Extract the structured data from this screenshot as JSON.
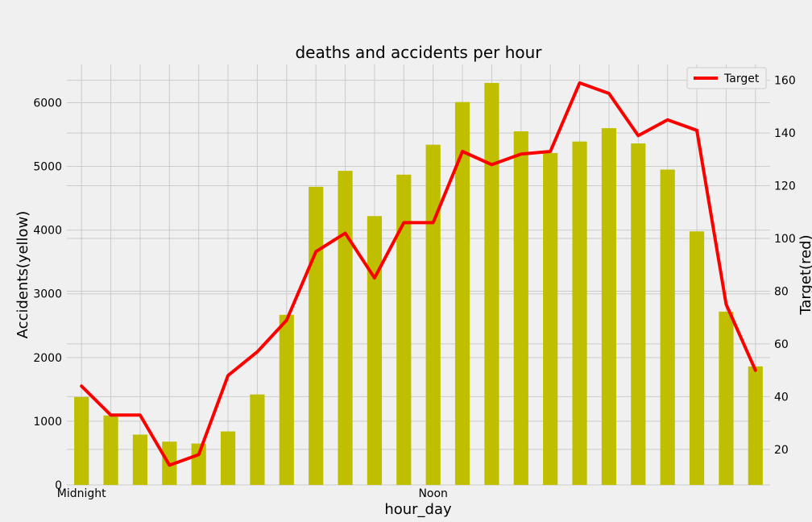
{
  "chart_data": {
    "type": "bar",
    "title": "deaths and accidents per hour",
    "xlabel": "hour_day",
    "ylabel": "Accidents(yellow)",
    "y2label": "Target(red)",
    "x": [
      0,
      1,
      2,
      3,
      4,
      5,
      6,
      7,
      8,
      9,
      10,
      11,
      12,
      13,
      14,
      15,
      16,
      17,
      18,
      19,
      20,
      21,
      22,
      23
    ],
    "x_tick_labels": [
      {
        "x": 0,
        "label": "Midnight"
      },
      {
        "x": 12,
        "label": "Noon"
      }
    ],
    "ylim": [
      0,
      6600
    ],
    "yticks": [
      0,
      1000,
      2000,
      3000,
      4000,
      5000,
      6000
    ],
    "y2lim": [
      6.5,
      166
    ],
    "y2ticks": [
      20,
      40,
      60,
      80,
      100,
      120,
      140,
      160
    ],
    "grid": true,
    "legend": "top-right",
    "series": [
      {
        "type": "bar",
        "axis": "left",
        "color": "#bfbf00",
        "values": [
          1380,
          1090,
          790,
          680,
          650,
          840,
          1420,
          2670,
          4680,
          4930,
          4220,
          4870,
          5340,
          6010,
          6310,
          5550,
          5210,
          5390,
          5600,
          5360,
          4950,
          3980,
          2720,
          1860
        ]
      },
      {
        "type": "line",
        "axis": "right",
        "name": "Target",
        "color": "#fc0000",
        "values": [
          44,
          33,
          33,
          14,
          18,
          48,
          57,
          69,
          95,
          102,
          85,
          106,
          106,
          133,
          128,
          132,
          133,
          159,
          155,
          139,
          145,
          141,
          75,
          50
        ]
      }
    ]
  }
}
